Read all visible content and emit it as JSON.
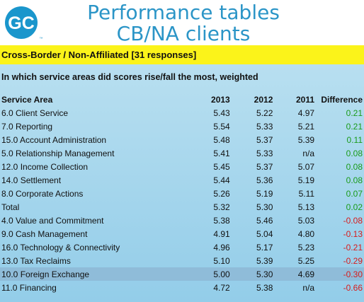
{
  "header": {
    "logo_text": "GC",
    "title_line1": "Performance tables",
    "title_line2": "CB/NA clients"
  },
  "banner": {
    "text": "Cross-Border / Non-Affiliated [31 responses]"
  },
  "question": "In which service areas did scores rise/fall the most, weighted",
  "table": {
    "headers": [
      "Service Area",
      "2013",
      "2012",
      "2011",
      "Difference"
    ],
    "rows": [
      {
        "area": "6.0 Client Service",
        "y2013": "5.43",
        "y2012": "5.22",
        "y2011": "4.97",
        "diff": "0.21"
      },
      {
        "area": "7.0 Reporting",
        "y2013": "5.54",
        "y2012": "5.33",
        "y2011": "5.21",
        "diff": "0.21"
      },
      {
        "area": "15.0 Account Administration",
        "y2013": "5.48",
        "y2012": "5.37",
        "y2011": "5.39",
        "diff": "0.11"
      },
      {
        "area": "5.0 Relationship Management",
        "y2013": "5.41",
        "y2012": "5.33",
        "y2011": "n/a",
        "diff": "0.08"
      },
      {
        "area": "12.0 Income Collection",
        "y2013": "5.45",
        "y2012": "5.37",
        "y2011": "5.07",
        "diff": "0.08"
      },
      {
        "area": "14.0 Settlement",
        "y2013": "5.44",
        "y2012": "5.36",
        "y2011": "5.19",
        "diff": "0.08"
      },
      {
        "area": "8.0 Corporate Actions",
        "y2013": "5.26",
        "y2012": "5.19",
        "y2011": "5.11",
        "diff": "0.07"
      },
      {
        "area": "Total",
        "y2013": "5.32",
        "y2012": "5.30",
        "y2011": "5.13",
        "diff": "0.02"
      },
      {
        "area": "4.0 Value and Commitment",
        "y2013": "5.38",
        "y2012": "5.46",
        "y2011": "5.03",
        "diff": "-0.08"
      },
      {
        "area": "9.0 Cash Management",
        "y2013": "4.91",
        "y2012": "5.04",
        "y2011": "4.80",
        "diff": "-0.13"
      },
      {
        "area": "16.0 Technology & Connectivity",
        "y2013": "4.96",
        "y2012": "5.17",
        "y2011": "5.23",
        "diff": "-0.21"
      },
      {
        "area": "13.0 Tax Reclaims",
        "y2013": "5.10",
        "y2012": "5.39",
        "y2011": "5.25",
        "diff": "-0.29"
      },
      {
        "area": "10.0 Foreign Exchange",
        "y2013": "5.00",
        "y2012": "5.30",
        "y2011": "4.69",
        "diff": "-0.30"
      },
      {
        "area": "11.0 Financing",
        "y2013": "4.72",
        "y2012": "5.38",
        "y2011": "n/a",
        "diff": "-0.66"
      }
    ],
    "highlight_row_index": 12
  },
  "colors": {
    "title": "#2b95c7",
    "banner": "#fbf31a",
    "positive": "#1a9b1a",
    "negative": "#d81b1b",
    "logo": "#1a96cc"
  }
}
